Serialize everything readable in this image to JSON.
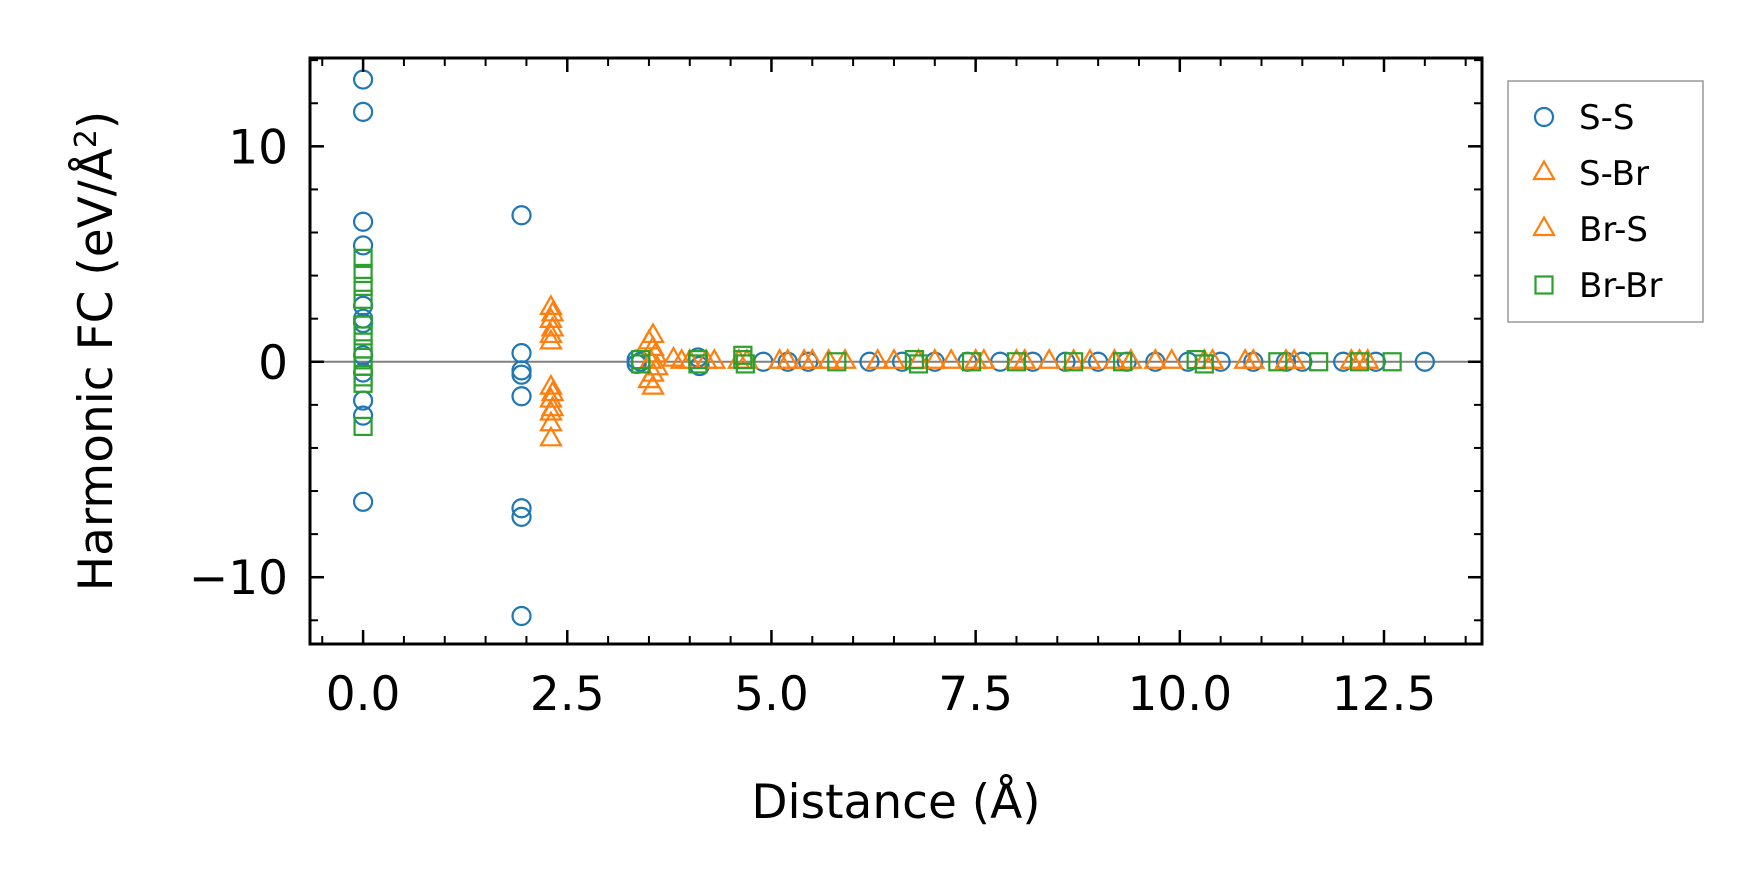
{
  "chart_data": {
    "type": "scatter",
    "title": "",
    "xlabel": "Distance (Å)",
    "ylabel_prefix": "Harmonic FC (eV/Å",
    "ylabel_sup": "2",
    "ylabel_suffix": ")",
    "xlim": [
      -0.65,
      13.7
    ],
    "ylim": [
      -13.1,
      14.1
    ],
    "xticks": [
      0.0,
      2.5,
      5.0,
      7.5,
      10.0,
      12.5
    ],
    "xtick_labels": [
      "0.0",
      "2.5",
      "5.0",
      "7.5",
      "10.0",
      "12.5"
    ],
    "yticks": [
      -10,
      0,
      10
    ],
    "ytick_labels": [
      "−10",
      "0",
      "10"
    ],
    "zero_line": 0,
    "legend_position": "outside-right-top",
    "series": [
      {
        "name": "S-S",
        "marker": "circle",
        "color": "#1f77b4",
        "x": [
          0,
          0,
          0,
          0,
          0,
          0,
          0,
          0,
          0,
          0,
          0,
          0,
          1.94,
          1.94,
          1.94,
          1.94,
          1.94,
          1.94,
          1.94,
          1.94,
          3.35,
          3.35,
          3.4,
          4.1,
          4.12,
          4.9,
          5.2,
          5.45,
          6.2,
          6.6,
          7.0,
          7.4,
          7.8,
          8.2,
          8.6,
          9.0,
          9.35,
          9.7,
          10.1,
          10.5,
          10.9,
          11.3,
          11.5,
          12.0,
          12.4,
          13.0
        ],
        "y": [
          13.1,
          11.6,
          6.5,
          5.4,
          2.6,
          1.8,
          0.3,
          -0.5,
          -1.8,
          -2.5,
          -6.5,
          2.0,
          6.8,
          0.4,
          -0.4,
          -0.6,
          -1.6,
          -6.8,
          -7.2,
          -11.8,
          0.1,
          -0.1,
          0.0,
          0.2,
          -0.2,
          0,
          0,
          0,
          0,
          0,
          0,
          0,
          0,
          0,
          0,
          0,
          0,
          0,
          0,
          0,
          0,
          0,
          0,
          0,
          0,
          0
        ]
      },
      {
        "name": "S-Br",
        "marker": "triangle",
        "color": "#ff7f0e",
        "x": [
          2.3,
          2.3,
          2.3,
          2.3,
          2.3,
          2.3,
          2.3,
          2.3,
          2.3,
          3.55,
          3.55,
          3.55,
          3.55,
          3.58,
          3.6,
          3.8,
          4.0,
          4.2,
          4.6,
          5.2,
          5.5,
          5.7,
          6.3,
          6.8,
          7.2,
          7.6,
          8.1,
          8.7,
          9.2,
          9.7,
          10.3,
          10.8,
          11.3,
          12.1,
          12.3
        ],
        "y": [
          2.5,
          1.9,
          1.2,
          0.9,
          -1.2,
          -1.8,
          -2.4,
          -2.9,
          -3.6,
          1.2,
          0.6,
          -0.6,
          -1.2,
          0.3,
          -0.3,
          0.1,
          0,
          0,
          0,
          0,
          0,
          0,
          0,
          0,
          0,
          0,
          0,
          0,
          0,
          0,
          0,
          0,
          0,
          0,
          0
        ]
      },
      {
        "name": "Br-S",
        "marker": "triangle",
        "color": "#ff7f0e",
        "x": [
          2.32,
          2.32,
          2.32,
          2.32,
          3.5,
          3.5,
          3.52,
          3.9,
          4.3,
          4.7,
          5.1,
          5.4,
          5.9,
          6.5,
          7.0,
          7.5,
          8.0,
          8.4,
          8.9,
          9.4,
          9.9,
          10.4,
          10.9,
          11.4,
          12.2
        ],
        "y": [
          2.2,
          1.5,
          -1.5,
          -2.2,
          0.9,
          -0.9,
          0.0,
          0,
          0,
          0,
          0,
          0,
          0,
          0,
          0,
          0,
          0,
          0,
          0,
          0,
          0,
          0,
          0,
          0,
          0
        ]
      },
      {
        "name": "Br-Br",
        "marker": "square",
        "color": "#2ca02c",
        "x": [
          0,
          0,
          0,
          0,
          0,
          0,
          0,
          0,
          0,
          0,
          0,
          0,
          3.4,
          3.4,
          4.1,
          4.1,
          4.65,
          4.65,
          4.68,
          5.8,
          6.75,
          6.8,
          7.45,
          8.0,
          8.7,
          9.3,
          10.2,
          10.3,
          11.2,
          11.7,
          12.2,
          12.6
        ],
        "y": [
          4.8,
          4.1,
          3.5,
          2.9,
          1.7,
          1.2,
          0.6,
          0.2,
          -0.2,
          -0.7,
          -1.0,
          -3.0,
          0.1,
          -0.1,
          0.1,
          -0.1,
          0.3,
          0.1,
          -0.1,
          0,
          0.1,
          -0.1,
          0,
          0,
          0,
          0,
          0.1,
          -0.1,
          0,
          0,
          0,
          0
        ]
      }
    ]
  }
}
